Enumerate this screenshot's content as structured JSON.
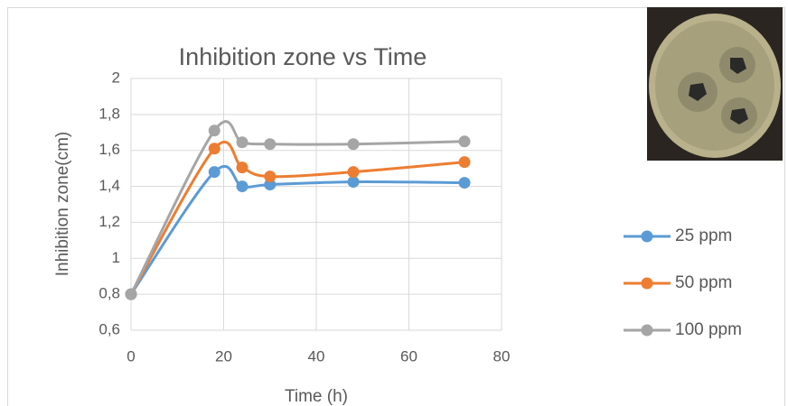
{
  "chart_data": {
    "type": "line",
    "title": "Inhibition zone vs Time",
    "x_label": "Time (h)",
    "y_label": "Inhibition zone(cm)",
    "x": [
      0,
      18,
      24,
      30,
      48,
      72
    ],
    "series": [
      {
        "name": "25 ppm",
        "color": "#5b9bd5",
        "values": [
          0.8,
          1.48,
          1.4,
          1.41,
          1.425,
          1.42
        ]
      },
      {
        "name": "50 ppm",
        "color": "#ed7d31",
        "values": [
          0.8,
          1.61,
          1.505,
          1.455,
          1.48,
          1.535
        ]
      },
      {
        "name": "100 ppm",
        "color": "#a5a5a5",
        "values": [
          0.8,
          1.71,
          1.645,
          1.635,
          1.635,
          1.65
        ]
      }
    ],
    "xlim": [
      0,
      80
    ],
    "xticks": [
      0,
      20,
      40,
      60,
      80
    ],
    "ylim": [
      0.6,
      2
    ],
    "yticks": [
      {
        "value": 0.6,
        "label": "0,6"
      },
      {
        "value": 0.8,
        "label": "0,8"
      },
      1,
      {
        "value": 1.2,
        "label": "1,2"
      },
      {
        "value": 1.4,
        "label": "1,4"
      },
      {
        "value": 1.6,
        "label": "1,6"
      },
      {
        "value": 1.8,
        "label": "1,8"
      },
      2
    ],
    "grid": true,
    "smooth": true,
    "legend": "right"
  }
}
